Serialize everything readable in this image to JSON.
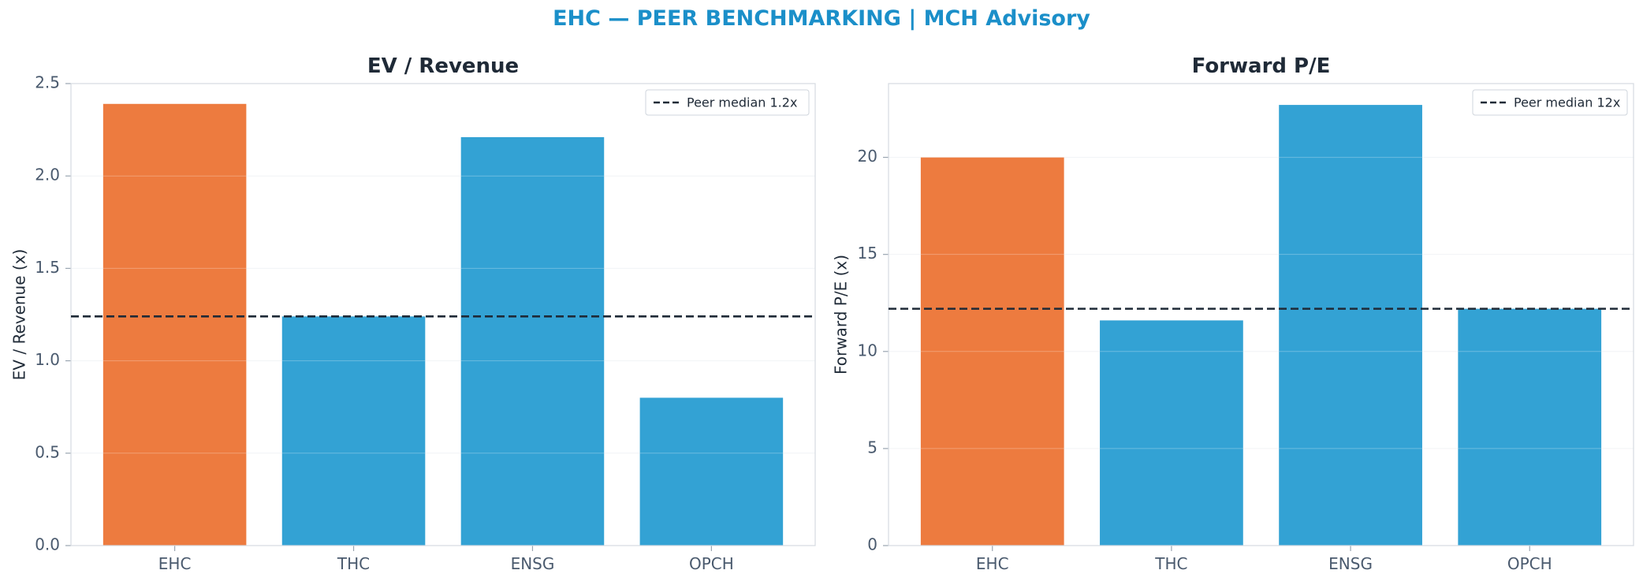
{
  "title": "EHC — PEER BENCHMARKING | MCH Advisory",
  "colors": {
    "highlight": "#ED7B3F",
    "peer": "#33A2D4",
    "median_line": "#1f2a37",
    "title": "#1b8fc9"
  },
  "chart_data": [
    {
      "type": "bar",
      "title": "EV / Revenue",
      "ylabel": "EV / Revenue (x)",
      "xlabel": "",
      "categories": [
        "EHC",
        "THC",
        "ENSG",
        "OPCH"
      ],
      "values": [
        2.39,
        1.24,
        2.21,
        0.8
      ],
      "highlight": "EHC",
      "ylim": [
        0,
        2.5
      ],
      "yticks": [
        0.0,
        0.5,
        1.0,
        1.5,
        2.0,
        2.5
      ],
      "ytick_labels": [
        "0.0",
        "0.5",
        "1.0",
        "1.5",
        "2.0",
        "2.5"
      ],
      "reference_line": {
        "value": 1.24,
        "label": "Peer median 1.2x",
        "style": "dashed"
      },
      "legend": "top-right",
      "grid": "horizontal"
    },
    {
      "type": "bar",
      "title": "Forward P/E",
      "ylabel": "Forward P/E (x)",
      "xlabel": "",
      "categories": [
        "EHC",
        "THC",
        "ENSG",
        "OPCH"
      ],
      "values": [
        20.0,
        11.6,
        22.7,
        12.2
      ],
      "highlight": "EHC",
      "ylim": [
        0,
        23.8
      ],
      "yticks": [
        0,
        5,
        10,
        15,
        20
      ],
      "ytick_labels": [
        "0",
        "5",
        "10",
        "15",
        "20"
      ],
      "reference_line": {
        "value": 12.2,
        "label": "Peer median 12x",
        "style": "dashed"
      },
      "legend": "top-right",
      "grid": "horizontal"
    }
  ]
}
